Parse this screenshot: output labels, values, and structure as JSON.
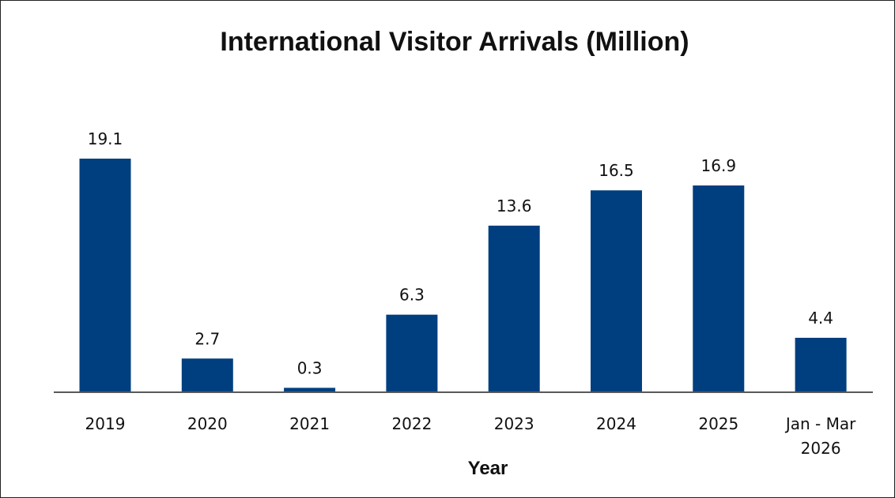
{
  "chart_data": {
    "type": "bar",
    "title": "International Visitor Arrivals (Million)",
    "xlabel": "Year",
    "ylabel": "",
    "categories": [
      "2019",
      "2020",
      "2021",
      "2022",
      "2023",
      "2024",
      "2025",
      "Jan - Mar 2026"
    ],
    "values": [
      19.1,
      2.7,
      0.3,
      6.3,
      13.6,
      16.5,
      16.9,
      4.4
    ],
    "data_labels": [
      "19.1",
      "2.7",
      "0.3",
      "6.3",
      "13.6",
      "16.5",
      "16.9",
      "4.4"
    ],
    "ylim": [
      0,
      19.1
    ],
    "grid": false,
    "legend": "none",
    "bar_color": "#003f7f",
    "axis_color": "#222222"
  }
}
